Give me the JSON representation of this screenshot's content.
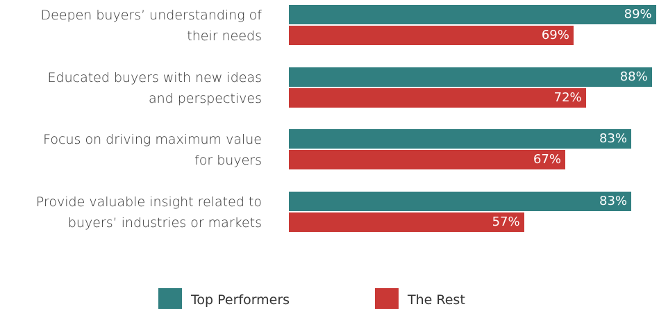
{
  "chart_data": {
    "type": "bar",
    "orientation": "horizontal",
    "categories": [
      "Deepen buyers’ understanding of\ntheir needs",
      "Educated buyers with new ideas\nand perspectives",
      "Focus on driving maximum value\nfor buyers",
      "Provide valuable insight related to\nbuyers’ industries or markets"
    ],
    "series": [
      {
        "name": "Top Performers",
        "color": "#317f80",
        "values": [
          89,
          88,
          83,
          83
        ],
        "value_labels": [
          "89%",
          "88%",
          "83%",
          "83%"
        ]
      },
      {
        "name": "The Rest",
        "color": "#c93835",
        "values": [
          69,
          72,
          67,
          57
        ],
        "value_labels": [
          "69%",
          "72%",
          "67%",
          "57%"
        ]
      }
    ]
  }
}
